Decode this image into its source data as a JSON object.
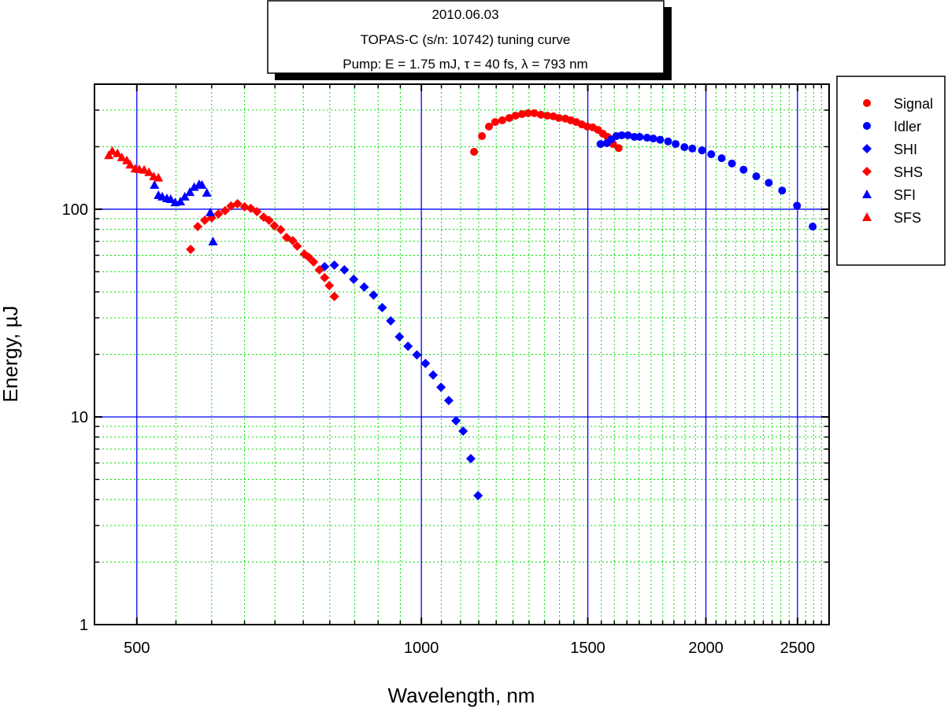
{
  "chart_data": {
    "type": "scatter",
    "title_lines": [
      "2010.06.03",
      "TOPAS-C (s/n: 10742) tuning curve",
      "Pump: E =  1.75 mJ, τ =  40 fs, λ =  793 nm"
    ],
    "xlabel": "Wavelength, nm",
    "ylabel": "Energy, µJ",
    "xscale": "log",
    "yscale": "log",
    "xlim": [
      451,
      2700
    ],
    "ylim": [
      1,
      400
    ],
    "xticks": [
      500,
      1000,
      1500,
      2000,
      2500
    ],
    "yticks": [
      1,
      10,
      100
    ],
    "grid": {
      "major": true,
      "minor": true,
      "major_color": "#0000ff",
      "minor_color": "#00e000"
    },
    "legend_placement": "right",
    "series": [
      {
        "name": "Signal",
        "marker": "circle",
        "color": "#ff0000",
        "x": [
          1137,
          1159,
          1179,
          1197,
          1218,
          1239,
          1258,
          1278,
          1297,
          1317,
          1338,
          1359,
          1379,
          1398,
          1420,
          1439,
          1458,
          1478,
          1498,
          1518,
          1538,
          1556,
          1574,
          1595,
          1617
        ],
        "y": [
          189,
          225,
          250,
          263,
          268,
          275,
          282,
          287,
          290,
          290,
          285,
          282,
          280,
          275,
          273,
          268,
          263,
          256,
          250,
          248,
          241,
          231,
          223,
          206,
          197
        ]
      },
      {
        "name": "Idler",
        "marker": "circle",
        "color": "#0000ff",
        "x": [
          1547,
          1571,
          1589,
          1608,
          1629,
          1654,
          1680,
          1702,
          1733,
          1759,
          1789,
          1824,
          1858,
          1898,
          1935,
          1981,
          2026,
          2078,
          2131,
          2192,
          2261,
          2331,
          2408,
          2497,
          2594
        ],
        "y": [
          206,
          208,
          217,
          225,
          227,
          227,
          223,
          223,
          221,
          219,
          216,
          212,
          206,
          199,
          196,
          192,
          184,
          176,
          166,
          155,
          144,
          134,
          123,
          104,
          82.5
        ]
      },
      {
        "name": "SHI",
        "marker": "diamond",
        "color": "#0000ff",
        "x": [
          790,
          809,
          829,
          848,
          870,
          890,
          909,
          928,
          948,
          968,
          989,
          1010,
          1029,
          1049,
          1069,
          1088,
          1107,
          1128,
          1148
        ],
        "y": [
          52.9,
          53.8,
          51.1,
          46.0,
          42.2,
          38.6,
          33.6,
          29.0,
          24.3,
          21.9,
          19.9,
          18.1,
          15.9,
          13.9,
          12.0,
          9.58,
          8.55,
          6.3,
          4.18
        ]
      },
      {
        "name": "SHS",
        "marker": "diamond",
        "color": "#ff0000",
        "x": [
          570,
          580,
          590,
          600,
          610,
          620,
          629,
          639,
          650,
          660,
          670,
          681,
          690,
          699,
          710,
          720,
          731,
          739,
          752,
          760,
          769,
          780,
          790,
          799,
          809
        ],
        "y": [
          64.1,
          82.5,
          88.5,
          90.9,
          94.9,
          98.3,
          103.6,
          106.3,
          102.7,
          100.9,
          97.4,
          91.6,
          88.5,
          83.3,
          79.7,
          73.1,
          70.6,
          66.4,
          60.8,
          58.7,
          55.7,
          51.1,
          46.8,
          42.9,
          38.0
        ]
      },
      {
        "name": "SFI",
        "marker": "triangle",
        "color": "#0000ff",
        "x": [
          522,
          527,
          532,
          538,
          543,
          549,
          556,
          562,
          569,
          575,
          582,
          586,
          593,
          598,
          602
        ],
        "y": [
          131,
          117,
          115,
          113,
          112,
          108,
          109,
          115,
          121,
          128,
          132,
          131,
          120,
          96.6,
          70
        ]
      },
      {
        "name": "SFS",
        "marker": "triangle",
        "color": "#ff0000",
        "x": [
          467,
          471,
          477,
          482,
          488,
          492,
          498,
          503,
          509,
          515,
          521,
          527
        ],
        "y": [
          182,
          191,
          186,
          178,
          172,
          164,
          157,
          156,
          155,
          151,
          144,
          142
        ]
      }
    ]
  }
}
